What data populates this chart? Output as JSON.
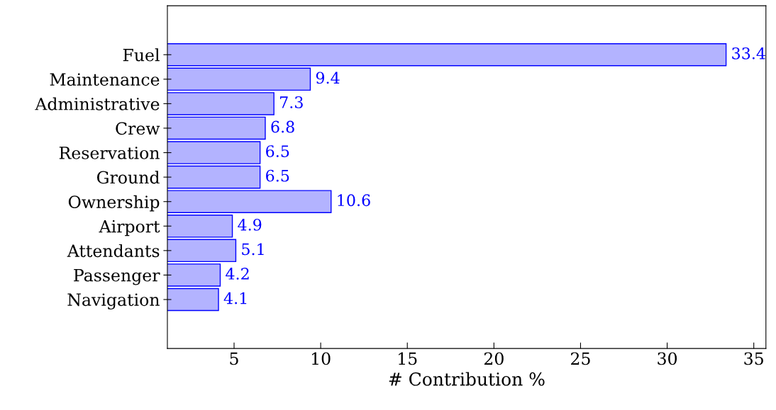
{
  "chart_data": {
    "type": "bar",
    "orientation": "horizontal",
    "xlabel": "# Contribution %",
    "categories": [
      "Fuel",
      "Maintenance",
      "Administrative",
      "Crew",
      "Reservation",
      "Ground",
      "Ownership",
      "Airport",
      "Attendants",
      "Passenger",
      "Navigation"
    ],
    "values": [
      33.4,
      9.4,
      7.3,
      6.8,
      6.5,
      6.5,
      10.6,
      4.9,
      5.1,
      4.2,
      4.1
    ],
    "color": "#b3b3ff",
    "data_labels": true,
    "grid": false,
    "legend": false,
    "xlim": [
      1.15,
      35.7
    ],
    "xticks": [
      5,
      10,
      15,
      20,
      25,
      30,
      35
    ]
  }
}
